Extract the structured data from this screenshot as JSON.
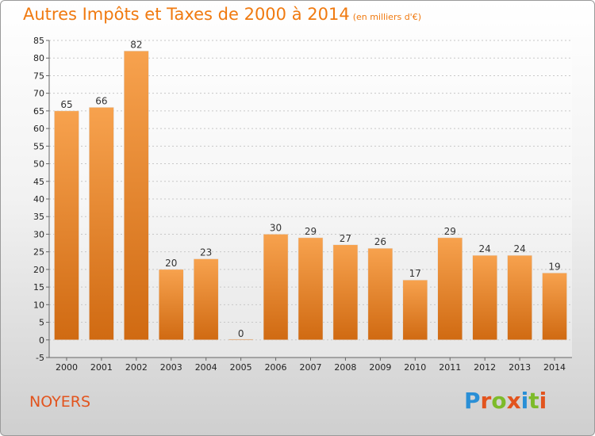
{
  "header": {
    "title": "Autres Impôts et Taxes de 2000 à 2014",
    "unit": "(en milliers d'€)"
  },
  "footer": {
    "commune": "NOYERS",
    "logo": [
      "P",
      "r",
      "o",
      "x",
      "i",
      "t",
      "i"
    ]
  },
  "colors": {
    "bar_light": "#f7a24e",
    "bar_dark": "#d06a12",
    "title": "#f07a10",
    "commune": "#e2541e",
    "logo": [
      "#2a8fd6",
      "#e2541e",
      "#7dbb2a",
      "#e2541e",
      "#2a8fd6",
      "#7dbb2a",
      "#e2541e"
    ]
  },
  "chart_data": {
    "type": "bar",
    "title": "Autres Impôts et Taxes de 2000 à 2014",
    "subtitle": "(en milliers d'€)",
    "xlabel": "",
    "ylabel": "",
    "categories": [
      "2000",
      "2001",
      "2002",
      "2003",
      "2004",
      "2005",
      "2006",
      "2007",
      "2008",
      "2009",
      "2010",
      "2011",
      "2012",
      "2013",
      "2014"
    ],
    "values": [
      65,
      66,
      82,
      20,
      23,
      0,
      30,
      29,
      27,
      26,
      17,
      29,
      24,
      24,
      19
    ],
    "ylim": [
      -5,
      85
    ],
    "yticks": [
      -5,
      0,
      5,
      10,
      15,
      20,
      25,
      30,
      35,
      40,
      45,
      50,
      55,
      60,
      65,
      70,
      75,
      80,
      85
    ],
    "grid": "horizontal dashed",
    "legend": "none"
  }
}
